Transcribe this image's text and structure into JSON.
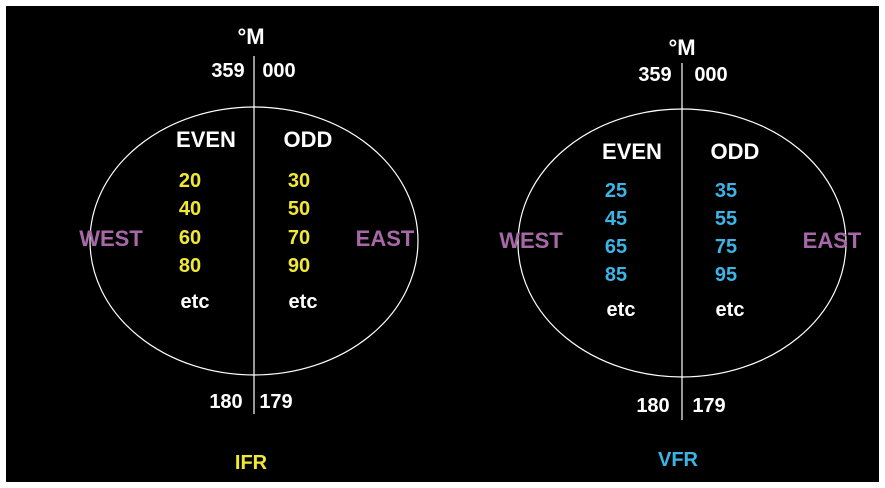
{
  "colors": {
    "background": "#000000",
    "line": "#ffffff",
    "text": "#ffffff",
    "direction": "#a868a8",
    "ifr": "#f0e832",
    "vfr": "#3cb4e6"
  },
  "ifr": {
    "unit": "°M",
    "north_left": "359",
    "north_right": "000",
    "south_left": "180",
    "south_right": "179",
    "even_header": "EVEN",
    "odd_header": "ODD",
    "even_levels": [
      "20",
      "40",
      "60",
      "80"
    ],
    "odd_levels": [
      "30",
      "50",
      "70",
      "90"
    ],
    "even_etc": "etc",
    "odd_etc": "etc",
    "west_label": "WEST",
    "east_label": "EAST",
    "title": "IFR"
  },
  "vfr": {
    "unit": "°M",
    "north_left": "359",
    "north_right": "000",
    "south_left": "180",
    "south_right": "179",
    "even_header": "EVEN",
    "odd_header": "ODD",
    "even_levels": [
      "25",
      "45",
      "65",
      "85"
    ],
    "odd_levels": [
      "35",
      "55",
      "75",
      "95"
    ],
    "even_etc": "etc",
    "odd_etc": "etc",
    "west_label": "WEST",
    "east_label": "EAST",
    "title": "VFR"
  }
}
